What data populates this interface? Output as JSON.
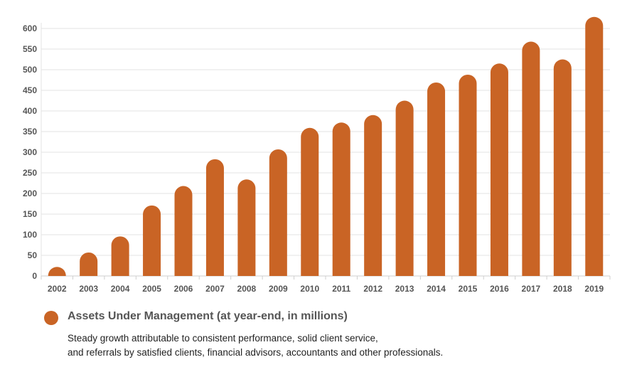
{
  "chart_data": {
    "type": "bar",
    "categories": [
      "2002",
      "2003",
      "2004",
      "2005",
      "2006",
      "2007",
      "2008",
      "2009",
      "2010",
      "2011",
      "2012",
      "2013",
      "2014",
      "2015",
      "2016",
      "2017",
      "2018",
      "2019"
    ],
    "series": [
      {
        "name": "Assets Under Management (at year-end, in millions)",
        "values": [
          22,
          57,
          96,
          171,
          218,
          283,
          234,
          307,
          359,
          372,
          390,
          425,
          469,
          488,
          515,
          568,
          525,
          628
        ]
      }
    ],
    "ylim": [
      0,
      600
    ],
    "yticks": [
      0,
      50,
      100,
      150,
      200,
      250,
      300,
      350,
      400,
      450,
      500,
      550,
      600
    ],
    "grid": true,
    "legend_position": "bottom-left",
    "colors": {
      "bar": "#c96425",
      "grid": "#e3e3e3",
      "tick_text": "#555555"
    }
  },
  "legend": {
    "label": "Assets Under Management (at year-end, in millions)",
    "note_line1": "Steady growth attributable to consistent performance, solid client service,",
    "note_line2": "and referrals by satisfied clients, financial advisors, accountants and other professionals."
  }
}
